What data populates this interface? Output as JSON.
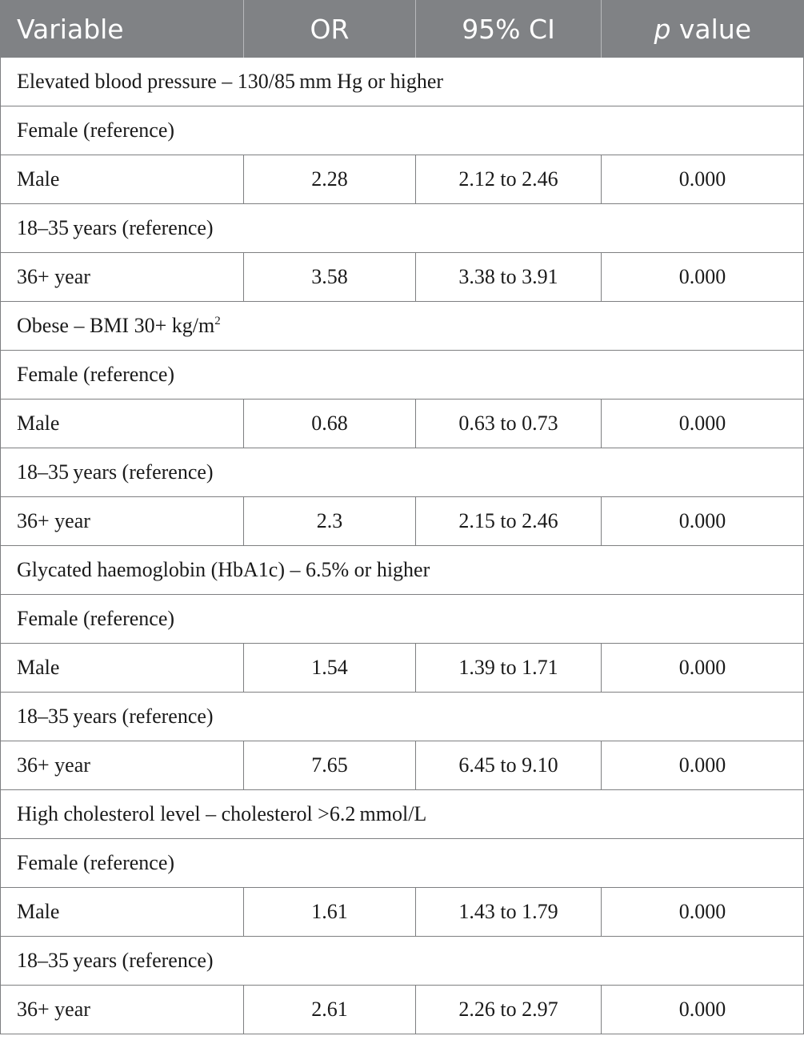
{
  "header": {
    "variable": "Variable",
    "or": "OR",
    "ci": "95% CI",
    "p_italic": "p",
    "p_rest": " value"
  },
  "groups": [
    {
      "title": "Elevated blood pressure – 130/85 mm Hg or higher",
      "sex_ref": "Female (reference)",
      "sex": {
        "label": "Male",
        "or": "2.28",
        "ci": "2.12 to 2.46",
        "p": "0.000"
      },
      "age_ref": "18–35 years (reference)",
      "age": {
        "label": "36+ year",
        "or": "3.58",
        "ci": "3.38 to 3.91",
        "p": "0.000"
      }
    },
    {
      "title": "Obese – BMI 30+ kg/m",
      "title_sup": "2",
      "sex_ref": "Female (reference)",
      "sex": {
        "label": "Male",
        "or": "0.68",
        "ci": "0.63 to 0.73",
        "p": "0.000"
      },
      "age_ref": "18–35 years (reference)",
      "age": {
        "label": "36+ year",
        "or": "2.3",
        "ci": "2.15 to 2.46",
        "p": "0.000"
      }
    },
    {
      "title": "Glycated haemoglobin (HbA1c) – 6.5% or higher",
      "sex_ref": "Female (reference)",
      "sex": {
        "label": "Male",
        "or": "1.54",
        "ci": "1.39 to 1.71",
        "p": "0.000"
      },
      "age_ref": "18–35 years (reference)",
      "age": {
        "label": "36+ year",
        "or": "7.65",
        "ci": "6.45 to 9.10",
        "p": "0.000"
      }
    },
    {
      "title": "High cholesterol level – cholesterol >6.2 mmol/L",
      "sex_ref": "Female (reference)",
      "sex": {
        "label": "Male",
        "or": "1.61",
        "ci": "1.43 to 1.79",
        "p": "0.000"
      },
      "age_ref": "18–35 years (reference)",
      "age": {
        "label": "36+ year",
        "or": "2.61",
        "ci": "2.26 to 2.97",
        "p": "0.000"
      }
    }
  ]
}
